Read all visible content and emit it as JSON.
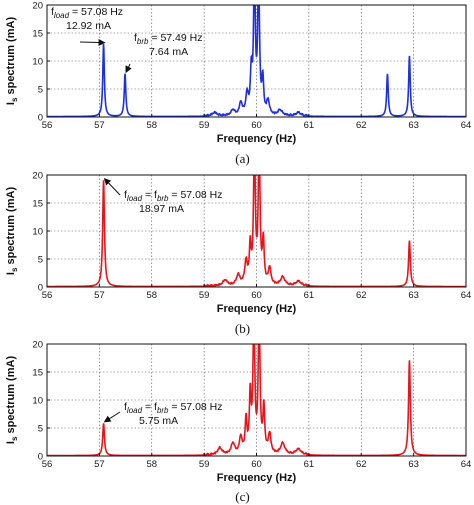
{
  "chart_data": [
    {
      "type": "line",
      "caption": "(a)",
      "xlabel": "Frequency (Hz)",
      "ylabel_main": "I",
      "ylabel_sub": "s",
      "ylabel_rest": " spectrum (mA)",
      "xlim": [
        56,
        64
      ],
      "ylim": [
        0,
        20
      ],
      "xticks": [
        56,
        57,
        58,
        59,
        60,
        61,
        62,
        63,
        64
      ],
      "yticks": [
        0,
        5,
        10,
        15,
        20
      ],
      "color": "#1d2fe0",
      "grid": true,
      "peaks": [
        {
          "x": 57.08,
          "y": 12.92,
          "w": 0.018
        },
        {
          "x": 57.49,
          "y": 7.64,
          "w": 0.018
        },
        {
          "x": 59.2,
          "y": 0.6,
          "w": 0.05
        },
        {
          "x": 59.55,
          "y": 1.0,
          "w": 0.04
        },
        {
          "x": 59.7,
          "y": 2.2,
          "w": 0.03
        },
        {
          "x": 59.82,
          "y": 3.5,
          "w": 0.03
        },
        {
          "x": 59.9,
          "y": 7.0,
          "w": 0.02
        },
        {
          "x": 59.96,
          "y": 25,
          "w": 0.02
        },
        {
          "x": 60.04,
          "y": 25,
          "w": 0.02
        },
        {
          "x": 60.12,
          "y": 6.0,
          "w": 0.02
        },
        {
          "x": 60.22,
          "y": 2.5,
          "w": 0.03
        },
        {
          "x": 60.45,
          "y": 1.0,
          "w": 0.05
        },
        {
          "x": 60.8,
          "y": 0.6,
          "w": 0.05
        },
        {
          "x": 62.5,
          "y": 7.6,
          "w": 0.018
        },
        {
          "x": 62.92,
          "y": 10.8,
          "w": 0.018
        }
      ],
      "annotations": [
        {
          "main": "f",
          "sub": "load",
          "rest": " = 57.08 Hz",
          "value": "12.92 mA",
          "target_x": 57.08,
          "target_y": 12.92
        },
        {
          "main": "f",
          "sub": "brb",
          "rest": " = 57.49 Hz",
          "value": "7.64 mA",
          "target_x": 57.49,
          "target_y": 7.64
        }
      ]
    },
    {
      "type": "line",
      "caption": "(b)",
      "xlabel": "Frequency (Hz)",
      "ylabel_main": "I",
      "ylabel_sub": "s",
      "ylabel_rest": " spectrum (mA)",
      "xlim": [
        56,
        64
      ],
      "ylim": [
        0,
        20
      ],
      "xticks": [
        56,
        57,
        58,
        59,
        60,
        61,
        62,
        63,
        64
      ],
      "yticks": [
        0,
        5,
        10,
        15,
        20
      ],
      "color": "#e8141b",
      "grid": true,
      "peaks": [
        {
          "x": 57.08,
          "y": 18.97,
          "w": 0.02
        },
        {
          "x": 59.4,
          "y": 1.0,
          "w": 0.05
        },
        {
          "x": 59.65,
          "y": 1.8,
          "w": 0.04
        },
        {
          "x": 59.8,
          "y": 4.0,
          "w": 0.03
        },
        {
          "x": 59.88,
          "y": 6.5,
          "w": 0.02
        },
        {
          "x": 59.96,
          "y": 25,
          "w": 0.02
        },
        {
          "x": 60.05,
          "y": 25,
          "w": 0.02
        },
        {
          "x": 60.13,
          "y": 7.5,
          "w": 0.02
        },
        {
          "x": 60.25,
          "y": 3.0,
          "w": 0.03
        },
        {
          "x": 60.5,
          "y": 1.5,
          "w": 0.05
        },
        {
          "x": 60.8,
          "y": 0.8,
          "w": 0.06
        },
        {
          "x": 62.92,
          "y": 8.2,
          "w": 0.02
        }
      ],
      "annotations": [
        {
          "main": "f",
          "sub": "load",
          "mid": " = ",
          "main2": "f",
          "sub2": "brb",
          "rest": " = 57.08 Hz",
          "value": "18.97 mA",
          "target_x": 57.08,
          "target_y": 18.97
        }
      ]
    },
    {
      "type": "line",
      "caption": "(c)",
      "xlabel": "Frequency (Hz)",
      "ylabel_main": "I",
      "ylabel_sub": "s",
      "ylabel_rest": " spectrum (mA)",
      "xlim": [
        56,
        64
      ],
      "ylim": [
        0,
        20
      ],
      "xticks": [
        56,
        57,
        58,
        59,
        60,
        61,
        62,
        63,
        64
      ],
      "yticks": [
        0,
        5,
        10,
        15,
        20
      ],
      "color": "#e8141b",
      "grid": true,
      "peaks": [
        {
          "x": 57.08,
          "y": 5.75,
          "w": 0.02
        },
        {
          "x": 59.3,
          "y": 1.2,
          "w": 0.05
        },
        {
          "x": 59.55,
          "y": 2.0,
          "w": 0.04
        },
        {
          "x": 59.7,
          "y": 3.0,
          "w": 0.03
        },
        {
          "x": 59.8,
          "y": 6.0,
          "w": 0.02
        },
        {
          "x": 59.88,
          "y": 10.0,
          "w": 0.02
        },
        {
          "x": 59.95,
          "y": 25,
          "w": 0.02
        },
        {
          "x": 60.05,
          "y": 25,
          "w": 0.02
        },
        {
          "x": 60.14,
          "y": 8.0,
          "w": 0.02
        },
        {
          "x": 60.25,
          "y": 3.5,
          "w": 0.03
        },
        {
          "x": 60.5,
          "y": 2.0,
          "w": 0.05
        },
        {
          "x": 60.8,
          "y": 1.0,
          "w": 0.06
        },
        {
          "x": 62.92,
          "y": 17.0,
          "w": 0.02
        }
      ],
      "annotations": [
        {
          "main": "f",
          "sub": "load",
          "mid": " = ",
          "main2": "f",
          "sub2": "brb",
          "rest": " = 57.08 Hz",
          "value": "5.75 mA",
          "target_x": 57.08,
          "target_y": 5.75
        }
      ]
    }
  ]
}
